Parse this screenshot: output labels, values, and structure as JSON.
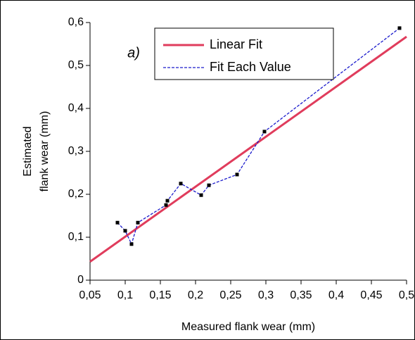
{
  "chart_data": {
    "type": "line",
    "annotation": "a)",
    "xlabel": "Measured flank wear (mm)",
    "ylabel": [
      "Estimated",
      "flank wear (mm)"
    ],
    "xlim": [
      0.05,
      0.5
    ],
    "ylim": [
      0,
      0.6
    ],
    "xticks": [
      {
        "value": 0.05,
        "label": "0,05"
      },
      {
        "value": 0.1,
        "label": "0,1"
      },
      {
        "value": 0.15,
        "label": "0,15"
      },
      {
        "value": 0.2,
        "label": "0,2"
      },
      {
        "value": 0.25,
        "label": "0,25"
      },
      {
        "value": 0.3,
        "label": "0,3"
      },
      {
        "value": 0.35,
        "label": "0,35"
      },
      {
        "value": 0.4,
        "label": "0,4"
      },
      {
        "value": 0.45,
        "label": "0,45"
      },
      {
        "value": 0.5,
        "label": "0,5"
      }
    ],
    "yticks": [
      0,
      {
        "value": 0.1,
        "label": "0,1"
      },
      {
        "value": 0.2,
        "label": "0,2"
      },
      {
        "value": 0.3,
        "label": "0,3"
      },
      {
        "value": 0.4,
        "label": "0,4"
      },
      {
        "value": 0.5,
        "label": "0,5"
      },
      {
        "value": 0.6,
        "label": "0,6"
      }
    ],
    "series": [
      {
        "name": "Linear Fit",
        "color": "#e03c5c",
        "x": [
          0.05,
          0.5
        ],
        "values": [
          0.043,
          0.567
        ]
      },
      {
        "name": "Fit Each Value",
        "color": "#1a1acc",
        "dashed": true,
        "marker": "square",
        "x": [
          0.089,
          0.1,
          0.109,
          0.118,
          0.158,
          0.16,
          0.179,
          0.208,
          0.219,
          0.259,
          0.298,
          0.49
        ],
        "values": [
          0.134,
          0.115,
          0.084,
          0.134,
          0.175,
          0.185,
          0.225,
          0.198,
          0.221,
          0.246,
          0.346,
          0.587
        ]
      }
    ]
  }
}
